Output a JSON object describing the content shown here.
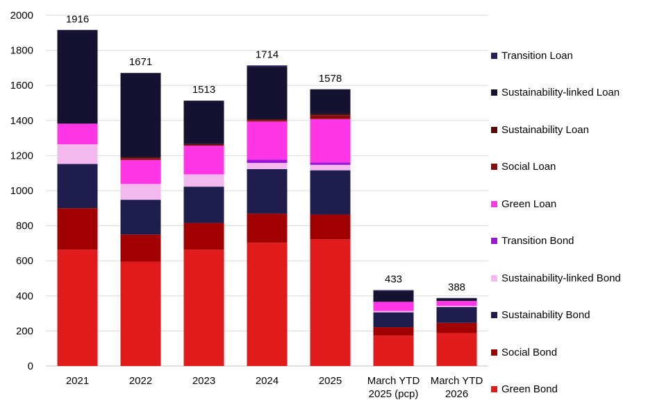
{
  "chart_data": {
    "type": "bar",
    "stacked": true,
    "title": "",
    "xlabel": "",
    "ylabel": "",
    "ylim": [
      0,
      2000
    ],
    "yticks": [
      0,
      200,
      400,
      600,
      800,
      1000,
      1200,
      1400,
      1600,
      1800,
      2000
    ],
    "grid": true,
    "legend_position": "right",
    "categories": [
      "2021",
      "2022",
      "2023",
      "2024",
      "2025",
      "March YTD\n2025 (pcp)",
      "March YTD\n2026"
    ],
    "totals": [
      "1916",
      "1671",
      "1513",
      "1714",
      "1578",
      "433",
      "388"
    ],
    "series": [
      {
        "name": "Green Bond",
        "color": "#e11b1b",
        "values": [
          663,
          595,
          663,
          703,
          722,
          173,
          188
        ]
      },
      {
        "name": "Social Bond",
        "color": "#a00000",
        "values": [
          237,
          155,
          153,
          166,
          142,
          48,
          58
        ]
      },
      {
        "name": "Sustainability Bond",
        "color": "#1f1d4e",
        "values": [
          252,
          198,
          207,
          254,
          252,
          85,
          90
        ]
      },
      {
        "name": "Sustainability-linked Bond",
        "color": "#f3b9ee",
        "values": [
          112,
          90,
          70,
          35,
          31,
          8,
          7
        ]
      },
      {
        "name": "Transition Bond",
        "color": "#9b16d8",
        "values": [
          0,
          0,
          0,
          18,
          14,
          0,
          0
        ]
      },
      {
        "name": "Green Loan",
        "color": "#ff35e6",
        "values": [
          118,
          137,
          163,
          218,
          247,
          52,
          28
        ]
      },
      {
        "name": "Social Loan",
        "color": "#8b0c0c",
        "values": [
          0,
          10,
          5,
          8,
          20,
          0,
          0
        ]
      },
      {
        "name": "Sustainability Loan",
        "color": "#5c0a0a",
        "values": [
          0,
          5,
          5,
          5,
          9,
          0,
          0
        ]
      },
      {
        "name": "Sustainability-linked Loan",
        "color": "#141131",
        "values": [
          534,
          481,
          247,
          299,
          141,
          62,
          14
        ]
      },
      {
        "name": "Transition Loan",
        "color": "#26205a",
        "values": [
          0,
          0,
          0,
          8,
          0,
          5,
          3
        ]
      }
    ]
  }
}
